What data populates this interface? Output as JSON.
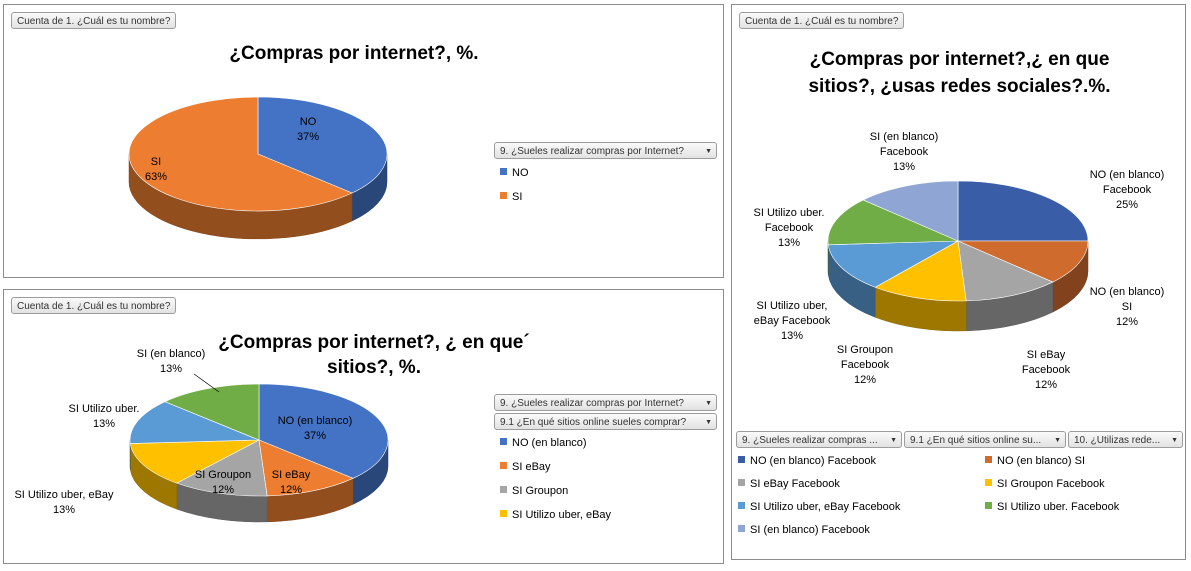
{
  "colors": {
    "blue": "#4472C4",
    "orange": "#ED7D31",
    "gray": "#A5A5A5",
    "gold": "#FFC000",
    "ltblue": "#5B9BD5",
    "green": "#70AD47",
    "lavender": "#8FA5D4",
    "darkblue": "#3A5DA8",
    "rust": "#D06B2E"
  },
  "panels": [
    {
      "field_button": "Cuenta de 1. ¿Cuál es tu nombre?"
    },
    {
      "field_button": "Cuenta de 1. ¿Cuál es tu nombre?"
    },
    {
      "field_button": "Cuenta de 1. ¿Cuál es tu nombre?"
    }
  ],
  "filters": {
    "p1": [
      "9. ¿Sueles realizar compras por Internet?"
    ],
    "p2": [
      "9. ¿Sueles realizar compras por Internet?",
      "9.1 ¿En qué sitios online sueles comprar?"
    ],
    "p3": [
      "9. ¿Sueles realizar compras ...",
      "9.1 ¿En qué sitios online su...",
      "10. ¿Utilizas rede..."
    ]
  },
  "chart_data": [
    {
      "type": "pie",
      "title": "¿Compras por internet?, %.",
      "categories": [
        "NO",
        "SI"
      ],
      "values": [
        37,
        63
      ],
      "data_labels": [
        [
          "NO",
          "37%"
        ],
        [
          "SI",
          "63%"
        ]
      ],
      "colors": [
        "#4472C4",
        "#ED7D31"
      ],
      "legend": [
        "NO",
        "SI"
      ],
      "legend_position": "right"
    },
    {
      "type": "pie",
      "title_lines": [
        "¿Compras por internet?, ¿ en que´",
        "sitios?, %."
      ],
      "categories": [
        "NO (en blanco)",
        "SI eBay",
        "SI Groupon",
        "SI Utilizo uber, eBay",
        "SI Utilizo uber.",
        "SI (en blanco)"
      ],
      "values": [
        37,
        12,
        12,
        13,
        13,
        13
      ],
      "data_labels": [
        [
          "NO (en blanco)",
          "37%"
        ],
        [
          "SI eBay",
          "12%"
        ],
        [
          "SI Groupon",
          "12%"
        ],
        [
          "SI Utilizo uber, eBay",
          "13%"
        ],
        [
          "SI Utilizo uber.",
          "13%"
        ],
        [
          "SI (en blanco)",
          "13%"
        ]
      ],
      "colors": [
        "#4472C4",
        "#ED7D31",
        "#A5A5A5",
        "#FFC000",
        "#5B9BD5",
        "#70AD47"
      ],
      "legend": [
        "NO (en blanco)",
        "SI eBay",
        "SI Groupon",
        "SI Utilizo uber, eBay"
      ],
      "legend_position": "right"
    },
    {
      "type": "pie",
      "title_lines": [
        "¿Compras por internet?,¿ en que",
        "sitios?, ¿usas redes sociales?.%."
      ],
      "categories": [
        "NO (en blanco) Facebook",
        "NO (en blanco) SI",
        "SI eBay Facebook",
        "SI Groupon Facebook",
        "SI Utilizo uber, eBay Facebook",
        "SI Utilizo uber. Facebook",
        "SI (en blanco) Facebook"
      ],
      "values": [
        25,
        12,
        12,
        12,
        13,
        13,
        13
      ],
      "data_labels": [
        [
          "NO (en blanco)",
          "Facebook",
          "25%"
        ],
        [
          "NO (en blanco)",
          "SI",
          "12%"
        ],
        [
          "SI eBay",
          "Facebook",
          "12%"
        ],
        [
          "SI Groupon",
          "Facebook",
          "12%"
        ],
        [
          "SI Utilizo uber,",
          "eBay Facebook",
          "13%"
        ],
        [
          "SI Utilizo uber.",
          "Facebook",
          "13%"
        ],
        [
          "SI (en blanco)",
          "Facebook",
          "13%"
        ]
      ],
      "colors": [
        "#3A5DA8",
        "#D06B2E",
        "#A5A5A5",
        "#FFC000",
        "#5B9BD5",
        "#70AD47",
        "#8FA5D4"
      ],
      "legend": [
        "NO (en blanco) Facebook",
        "NO (en blanco) SI",
        "SI eBay Facebook",
        "SI Groupon Facebook",
        "SI Utilizo uber, eBay Facebook",
        "SI Utilizo uber. Facebook",
        "SI (en blanco) Facebook"
      ],
      "legend_position": "bottom"
    }
  ]
}
